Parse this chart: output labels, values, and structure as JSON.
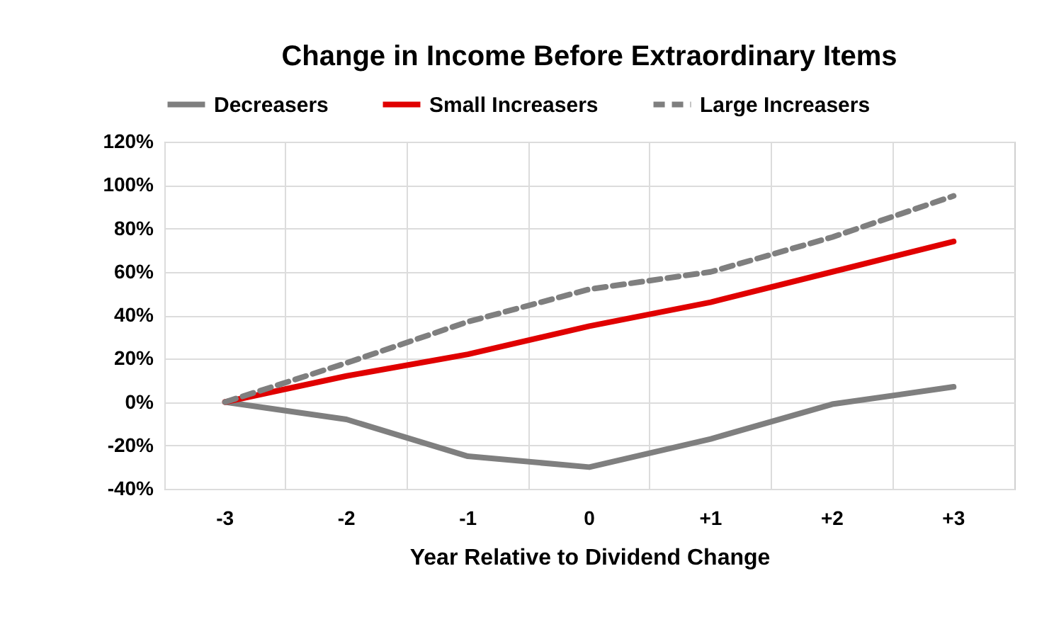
{
  "chart_data": {
    "type": "line",
    "title": "Change in Income Before Extraordinary Items",
    "xlabel": "Year Relative to Dividend Change",
    "categories": [
      "-3",
      "-2",
      "-1",
      "0",
      "+1",
      "+2",
      "+3"
    ],
    "series": [
      {
        "name": "Decreasers",
        "color": "#7f7f7f",
        "line_style": "solid",
        "values": [
          0,
          -8,
          -25,
          -30,
          -17,
          -1,
          7
        ]
      },
      {
        "name": "Small Increasers",
        "color": "#e00000",
        "line_style": "solid",
        "values": [
          0,
          12,
          22,
          35,
          46,
          60,
          74
        ]
      },
      {
        "name": "Large Increasers",
        "color": "#7f7f7f",
        "line_style": "dashed",
        "values": [
          0,
          18,
          37,
          52,
          60,
          76,
          95
        ]
      }
    ],
    "ylim": [
      -40,
      120
    ],
    "yticks": [
      {
        "value": -40,
        "label": "-40%"
      },
      {
        "value": -20,
        "label": "-20%"
      },
      {
        "value": 0,
        "label": "0%"
      },
      {
        "value": 20,
        "label": "20%"
      },
      {
        "value": 40,
        "label": "40%"
      },
      {
        "value": 60,
        "label": "60%"
      },
      {
        "value": 80,
        "label": "80%"
      },
      {
        "value": 100,
        "label": "100%"
      },
      {
        "value": 120,
        "label": "120%"
      }
    ],
    "grid": true,
    "legend": "top",
    "marker": "none"
  }
}
